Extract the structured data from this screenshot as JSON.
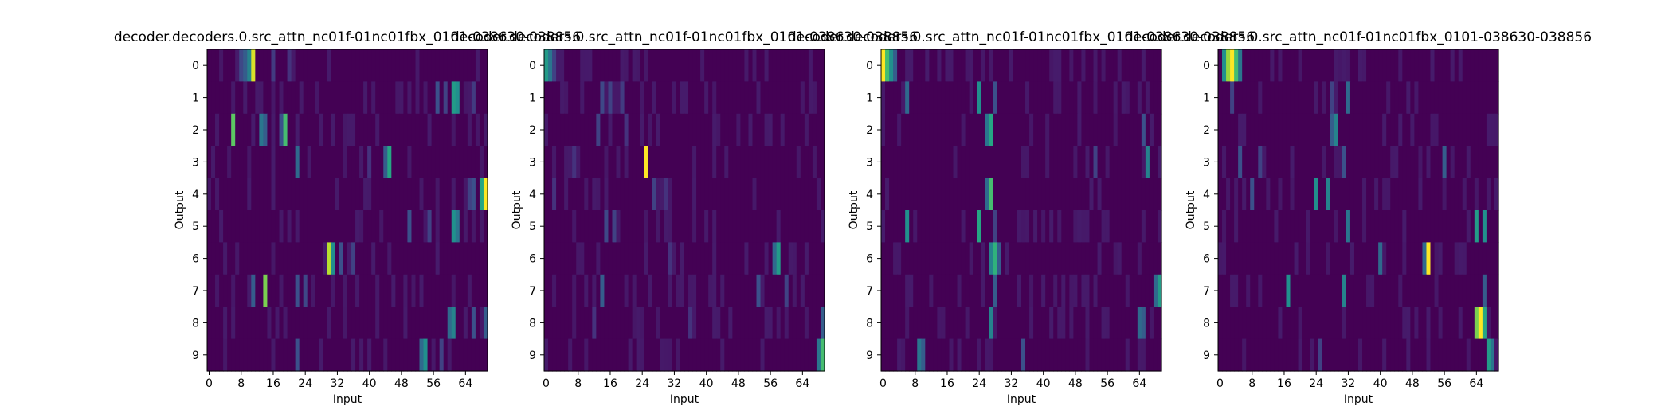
{
  "figure": {
    "colormap": "viridis",
    "background": "#ffffff",
    "value_range": [
      0,
      1
    ]
  },
  "chart_data": [
    {
      "type": "heatmap",
      "title": "decoder.decoders.0.src_attn_nc01f-01nc01fbx_0101-038630-038856",
      "xlabel": "Input",
      "ylabel": "Output",
      "x_ticks": [
        "0",
        "8",
        "16",
        "24",
        "32",
        "40",
        "48",
        "56",
        "64"
      ],
      "y_ticks": [
        "0",
        "1",
        "2",
        "3",
        "4",
        "5",
        "6",
        "7",
        "8",
        "9"
      ],
      "xlim": [
        0,
        70
      ],
      "rows": 10,
      "cols": 70,
      "grid": false,
      "hotspots": [
        {
          "row": 0,
          "col": 11,
          "value": 0.95
        },
        {
          "row": 0,
          "col": 10,
          "value": 0.45
        },
        {
          "row": 0,
          "col": 9,
          "value": 0.3
        },
        {
          "row": 0,
          "col": 8,
          "value": 0.22
        },
        {
          "row": 0,
          "col": 16,
          "value": 0.18
        },
        {
          "row": 0,
          "col": 20,
          "value": 0.15
        },
        {
          "row": 1,
          "col": 61,
          "value": 0.55
        },
        {
          "row": 1,
          "col": 62,
          "value": 0.5
        },
        {
          "row": 1,
          "col": 57,
          "value": 0.25
        },
        {
          "row": 1,
          "col": 59,
          "value": 0.2
        },
        {
          "row": 1,
          "col": 66,
          "value": 0.18
        },
        {
          "row": 2,
          "col": 6,
          "value": 0.75
        },
        {
          "row": 2,
          "col": 19,
          "value": 0.7
        },
        {
          "row": 2,
          "col": 13,
          "value": 0.4
        },
        {
          "row": 2,
          "col": 14,
          "value": 0.3
        },
        {
          "row": 2,
          "col": 18,
          "value": 0.25
        },
        {
          "row": 3,
          "col": 45,
          "value": 0.6
        },
        {
          "row": 3,
          "col": 44,
          "value": 0.3
        },
        {
          "row": 3,
          "col": 22,
          "value": 0.35
        },
        {
          "row": 3,
          "col": 40,
          "value": 0.15
        },
        {
          "row": 4,
          "col": 69,
          "value": 1.0
        },
        {
          "row": 4,
          "col": 68,
          "value": 0.6
        },
        {
          "row": 4,
          "col": 66,
          "value": 0.25
        },
        {
          "row": 4,
          "col": 65,
          "value": 0.2
        },
        {
          "row": 5,
          "col": 61,
          "value": 0.5
        },
        {
          "row": 5,
          "col": 62,
          "value": 0.4
        },
        {
          "row": 5,
          "col": 50,
          "value": 0.25
        },
        {
          "row": 5,
          "col": 55,
          "value": 0.2
        },
        {
          "row": 6,
          "col": 30,
          "value": 0.9
        },
        {
          "row": 6,
          "col": 31,
          "value": 0.5
        },
        {
          "row": 6,
          "col": 33,
          "value": 0.25
        },
        {
          "row": 6,
          "col": 36,
          "value": 0.2
        },
        {
          "row": 7,
          "col": 14,
          "value": 0.8
        },
        {
          "row": 7,
          "col": 11,
          "value": 0.3
        },
        {
          "row": 7,
          "col": 22,
          "value": 0.25
        },
        {
          "row": 7,
          "col": 24,
          "value": 0.22
        },
        {
          "row": 8,
          "col": 61,
          "value": 0.45
        },
        {
          "row": 8,
          "col": 60,
          "value": 0.35
        },
        {
          "row": 8,
          "col": 69,
          "value": 0.3
        },
        {
          "row": 8,
          "col": 66,
          "value": 0.25
        },
        {
          "row": 9,
          "col": 54,
          "value": 0.5
        },
        {
          "row": 9,
          "col": 53,
          "value": 0.35
        },
        {
          "row": 9,
          "col": 22,
          "value": 0.25
        },
        {
          "row": 9,
          "col": 58,
          "value": 0.2
        }
      ]
    },
    {
      "type": "heatmap",
      "title": "decoder.decoders.0.src_attn_nc01f-01nc01fbx_0101-038630-038856",
      "xlabel": "Input",
      "ylabel": "Output",
      "x_ticks": [
        "0",
        "8",
        "16",
        "24",
        "32",
        "40",
        "48",
        "56",
        "64"
      ],
      "y_ticks": [
        "0",
        "1",
        "2",
        "3",
        "4",
        "5",
        "6",
        "7",
        "8",
        "9"
      ],
      "xlim": [
        0,
        70
      ],
      "rows": 10,
      "cols": 70,
      "grid": false,
      "hotspots": [
        {
          "row": 0,
          "col": 0,
          "value": 0.55
        },
        {
          "row": 0,
          "col": 1,
          "value": 0.4
        },
        {
          "row": 0,
          "col": 2,
          "value": 0.2
        },
        {
          "row": 1,
          "col": 14,
          "value": 0.22
        },
        {
          "row": 1,
          "col": 16,
          "value": 0.2
        },
        {
          "row": 1,
          "col": 19,
          "value": 0.18
        },
        {
          "row": 2,
          "col": 13,
          "value": 0.2
        },
        {
          "row": 2,
          "col": 20,
          "value": 0.15
        },
        {
          "row": 3,
          "col": 25,
          "value": 1.0
        },
        {
          "row": 3,
          "col": 7,
          "value": 0.15
        },
        {
          "row": 4,
          "col": 27,
          "value": 0.2
        },
        {
          "row": 4,
          "col": 2,
          "value": 0.15
        },
        {
          "row": 4,
          "col": 30,
          "value": 0.15
        },
        {
          "row": 5,
          "col": 15,
          "value": 0.22
        },
        {
          "row": 5,
          "col": 17,
          "value": 0.2
        },
        {
          "row": 6,
          "col": 58,
          "value": 0.55
        },
        {
          "row": 6,
          "col": 57,
          "value": 0.35
        },
        {
          "row": 6,
          "col": 31,
          "value": 0.15
        },
        {
          "row": 7,
          "col": 14,
          "value": 0.3
        },
        {
          "row": 7,
          "col": 53,
          "value": 0.25
        },
        {
          "row": 7,
          "col": 60,
          "value": 0.2
        },
        {
          "row": 8,
          "col": 69,
          "value": 0.3
        },
        {
          "row": 8,
          "col": 36,
          "value": 0.15
        },
        {
          "row": 8,
          "col": 12,
          "value": 0.15
        },
        {
          "row": 9,
          "col": 69,
          "value": 0.7
        },
        {
          "row": 9,
          "col": 68,
          "value": 0.4
        }
      ]
    },
    {
      "type": "heatmap",
      "title": "decoder.decoders.0.src_attn_nc01f-01nc01fbx_0101-038630-038856",
      "xlabel": "Input",
      "ylabel": "Output",
      "x_ticks": [
        "0",
        "8",
        "16",
        "24",
        "32",
        "40",
        "48",
        "56",
        "64"
      ],
      "y_ticks": [
        "0",
        "1",
        "2",
        "3",
        "4",
        "5",
        "6",
        "7",
        "8",
        "9"
      ],
      "xlim": [
        0,
        70
      ],
      "rows": 10,
      "cols": 70,
      "grid": false,
      "hotspots": [
        {
          "row": 0,
          "col": 0,
          "value": 1.0
        },
        {
          "row": 0,
          "col": 1,
          "value": 0.7
        },
        {
          "row": 0,
          "col": 2,
          "value": 0.5
        },
        {
          "row": 0,
          "col": 3,
          "value": 0.3
        },
        {
          "row": 1,
          "col": 6,
          "value": 0.35
        },
        {
          "row": 1,
          "col": 24,
          "value": 0.5
        },
        {
          "row": 1,
          "col": 28,
          "value": 0.25
        },
        {
          "row": 2,
          "col": 27,
          "value": 0.6
        },
        {
          "row": 2,
          "col": 26,
          "value": 0.4
        },
        {
          "row": 2,
          "col": 65,
          "value": 0.25
        },
        {
          "row": 3,
          "col": 66,
          "value": 0.45
        },
        {
          "row": 3,
          "col": 53,
          "value": 0.2
        },
        {
          "row": 4,
          "col": 27,
          "value": 0.7
        },
        {
          "row": 4,
          "col": 26,
          "value": 0.35
        },
        {
          "row": 5,
          "col": 6,
          "value": 0.5
        },
        {
          "row": 5,
          "col": 24,
          "value": 0.6
        },
        {
          "row": 5,
          "col": 28,
          "value": 0.2
        },
        {
          "row": 6,
          "col": 28,
          "value": 0.65
        },
        {
          "row": 6,
          "col": 27,
          "value": 0.45
        },
        {
          "row": 6,
          "col": 29,
          "value": 0.3
        },
        {
          "row": 7,
          "col": 69,
          "value": 0.55
        },
        {
          "row": 7,
          "col": 68,
          "value": 0.35
        },
        {
          "row": 7,
          "col": 28,
          "value": 0.3
        },
        {
          "row": 8,
          "col": 27,
          "value": 0.45
        },
        {
          "row": 8,
          "col": 64,
          "value": 0.35
        },
        {
          "row": 8,
          "col": 65,
          "value": 0.3
        },
        {
          "row": 9,
          "col": 9,
          "value": 0.4
        },
        {
          "row": 9,
          "col": 10,
          "value": 0.3
        },
        {
          "row": 9,
          "col": 35,
          "value": 0.25
        }
      ]
    },
    {
      "type": "heatmap",
      "title": "decoder.decoders.0.src_attn_nc01f-01nc01fbx_0101-038630-038856",
      "xlabel": "Input",
      "ylabel": "Output",
      "x_ticks": [
        "0",
        "8",
        "16",
        "24",
        "32",
        "40",
        "48",
        "56",
        "64"
      ],
      "y_ticks": [
        "0",
        "1",
        "2",
        "3",
        "4",
        "5",
        "6",
        "7",
        "8",
        "9"
      ],
      "xlim": [
        0,
        70
      ],
      "rows": 10,
      "cols": 70,
      "grid": false,
      "hotspots": [
        {
          "row": 0,
          "col": 3,
          "value": 1.0
        },
        {
          "row": 0,
          "col": 2,
          "value": 0.85
        },
        {
          "row": 0,
          "col": 4,
          "value": 0.7
        },
        {
          "row": 0,
          "col": 1,
          "value": 0.5
        },
        {
          "row": 0,
          "col": 5,
          "value": 0.4
        },
        {
          "row": 1,
          "col": 32,
          "value": 0.35
        },
        {
          "row": 1,
          "col": 3,
          "value": 0.2
        },
        {
          "row": 1,
          "col": 28,
          "value": 0.2
        },
        {
          "row": 2,
          "col": 29,
          "value": 0.45
        },
        {
          "row": 2,
          "col": 28,
          "value": 0.3
        },
        {
          "row": 3,
          "col": 5,
          "value": 0.25
        },
        {
          "row": 3,
          "col": 10,
          "value": 0.2
        },
        {
          "row": 3,
          "col": 31,
          "value": 0.25
        },
        {
          "row": 3,
          "col": 56,
          "value": 0.3
        },
        {
          "row": 4,
          "col": 24,
          "value": 0.5
        },
        {
          "row": 4,
          "col": 27,
          "value": 0.45
        },
        {
          "row": 4,
          "col": 8,
          "value": 0.25
        },
        {
          "row": 5,
          "col": 32,
          "value": 0.4
        },
        {
          "row": 5,
          "col": 64,
          "value": 0.55
        },
        {
          "row": 5,
          "col": 66,
          "value": 0.5
        },
        {
          "row": 6,
          "col": 52,
          "value": 1.0
        },
        {
          "row": 6,
          "col": 51,
          "value": 0.35
        },
        {
          "row": 6,
          "col": 40,
          "value": 0.35
        },
        {
          "row": 7,
          "col": 17,
          "value": 0.5
        },
        {
          "row": 7,
          "col": 31,
          "value": 0.45
        },
        {
          "row": 7,
          "col": 66,
          "value": 0.3
        },
        {
          "row": 8,
          "col": 65,
          "value": 1.0
        },
        {
          "row": 8,
          "col": 64,
          "value": 0.8
        },
        {
          "row": 8,
          "col": 66,
          "value": 0.6
        },
        {
          "row": 9,
          "col": 67,
          "value": 0.55
        },
        {
          "row": 9,
          "col": 68,
          "value": 0.4
        },
        {
          "row": 9,
          "col": 25,
          "value": 0.2
        }
      ]
    }
  ]
}
